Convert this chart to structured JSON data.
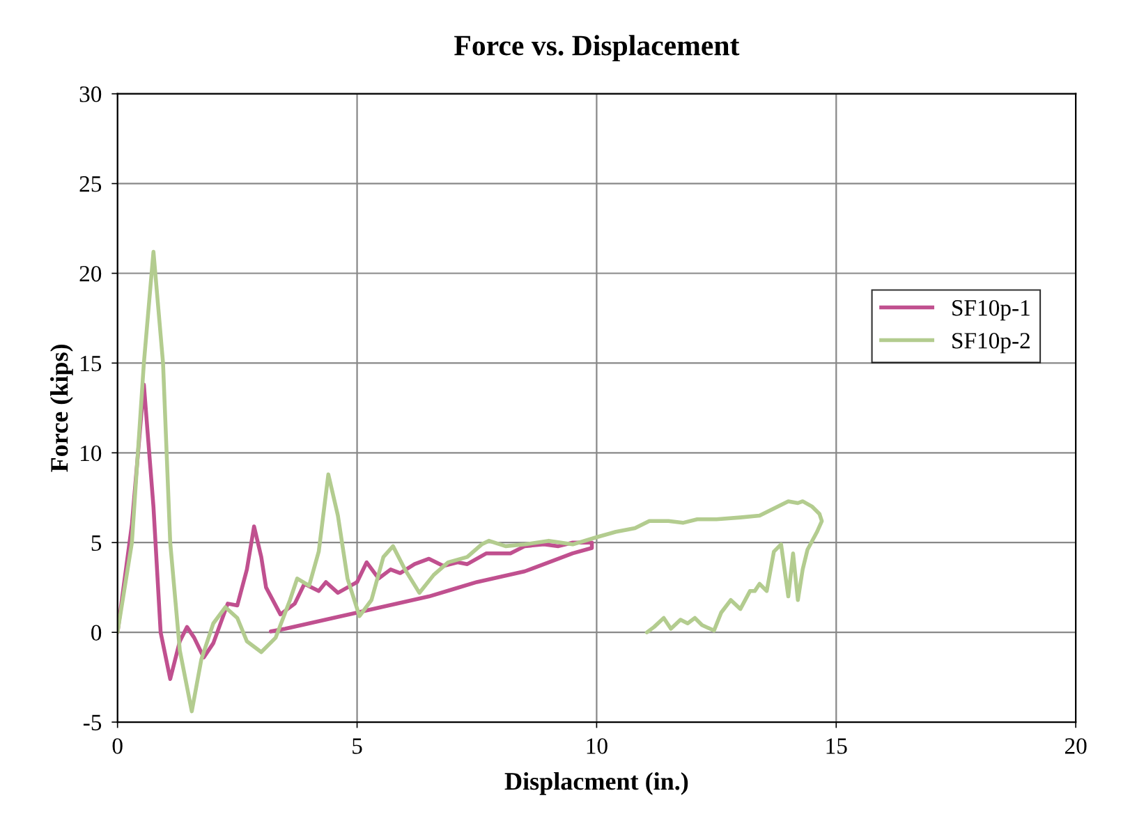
{
  "chart_data": {
    "type": "line",
    "title": "Force vs. Displacement",
    "xlabel": "Displacment (in.)",
    "ylabel": "Force (kips)",
    "xlim": [
      0,
      20
    ],
    "xticks": [
      0,
      5,
      10,
      15,
      20
    ],
    "ylim": [
      -5,
      30
    ],
    "yticks": [
      {
        "value": -5,
        "label": "-5"
      },
      0,
      5,
      10,
      15,
      20,
      25,
      30
    ],
    "grid": true,
    "legend": "right",
    "marker": "none",
    "line_style": "solid",
    "series": [
      {
        "name": "SF10p-1",
        "color": "#c0508f",
        "x": [
          0,
          0.3,
          0.55,
          0.75,
          0.9,
          1.1,
          1.3,
          1.45,
          1.6,
          1.8,
          2.0,
          2.3,
          2.5,
          2.7,
          2.85,
          3.0,
          3.1,
          3.4,
          3.7,
          3.9,
          4.2,
          4.35,
          4.6,
          5.0,
          5.2,
          5.45,
          5.7,
          5.9,
          6.2,
          6.5,
          6.8,
          7.1,
          7.3,
          7.7,
          8.2,
          8.5,
          8.9,
          9.2,
          9.5,
          9.9,
          9.9,
          9.5,
          9.0,
          8.5,
          8.0,
          7.5,
          7.0,
          6.5,
          6.0,
          5.5,
          5.0,
          4.5,
          4.0,
          3.5,
          3.2
        ],
        "values": [
          0,
          6,
          13.8,
          7,
          0,
          -2.6,
          -0.5,
          0.3,
          -0.3,
          -1.4,
          -0.6,
          1.6,
          1.5,
          3.5,
          5.9,
          4.2,
          2.5,
          1.0,
          1.6,
          2.7,
          2.3,
          2.8,
          2.2,
          2.8,
          3.9,
          3.0,
          3.5,
          3.3,
          3.8,
          4.1,
          3.7,
          3.9,
          3.8,
          4.4,
          4.4,
          4.8,
          4.9,
          4.8,
          5.0,
          5.0,
          4.7,
          4.4,
          3.9,
          3.4,
          3.1,
          2.8,
          2.4,
          2.0,
          1.7,
          1.4,
          1.1,
          0.8,
          0.5,
          0.2,
          0.05
        ]
      },
      {
        "name": "SF10p-2",
        "color": "#b3cc8f",
        "x": [
          0,
          0.3,
          0.55,
          0.75,
          0.95,
          1.1,
          1.3,
          1.55,
          1.75,
          2.0,
          2.25,
          2.5,
          2.7,
          3.0,
          3.3,
          3.6,
          3.75,
          4.0,
          4.2,
          4.4,
          4.6,
          4.8,
          5.05,
          5.3,
          5.55,
          5.75,
          6.0,
          6.3,
          6.6,
          6.9,
          7.3,
          7.6,
          7.75,
          8.1,
          8.5,
          9.0,
          9.5,
          10.0,
          10.4,
          10.8,
          11.1,
          11.5,
          11.8,
          12.1,
          12.5,
          13.0,
          13.4,
          13.7,
          14.0,
          14.2,
          14.3,
          14.5,
          14.65,
          14.7,
          14.6,
          14.4,
          14.3,
          14.2,
          14.1,
          14.0,
          13.85,
          13.7,
          13.55,
          13.4,
          13.3,
          13.2,
          13.0,
          12.8,
          12.6,
          12.45,
          12.2,
          12.05,
          11.9,
          11.75,
          11.55,
          11.4,
          11.2,
          11.05
        ],
        "values": [
          0,
          5,
          15,
          21.2,
          15,
          5,
          -1,
          -4.4,
          -1.5,
          0.5,
          1.4,
          0.8,
          -0.5,
          -1.1,
          -0.3,
          1.8,
          3.0,
          2.6,
          4.5,
          8.8,
          6.5,
          3,
          0.9,
          1.8,
          4.2,
          4.8,
          3.5,
          2.2,
          3.2,
          3.9,
          4.2,
          4.9,
          5.1,
          4.8,
          4.9,
          5.1,
          4.9,
          5.3,
          5.6,
          5.8,
          6.2,
          6.2,
          6.1,
          6.3,
          6.3,
          6.4,
          6.5,
          6.9,
          7.3,
          7.2,
          7.3,
          7.0,
          6.6,
          6.2,
          5.6,
          4.6,
          3.5,
          1.8,
          4.4,
          2.0,
          4.9,
          4.5,
          2.3,
          2.7,
          2.3,
          2.3,
          1.3,
          1.8,
          1.1,
          0.1,
          0.4,
          0.8,
          0.5,
          0.7,
          0.2,
          0.8,
          0.3,
          0.0
        ]
      }
    ]
  }
}
